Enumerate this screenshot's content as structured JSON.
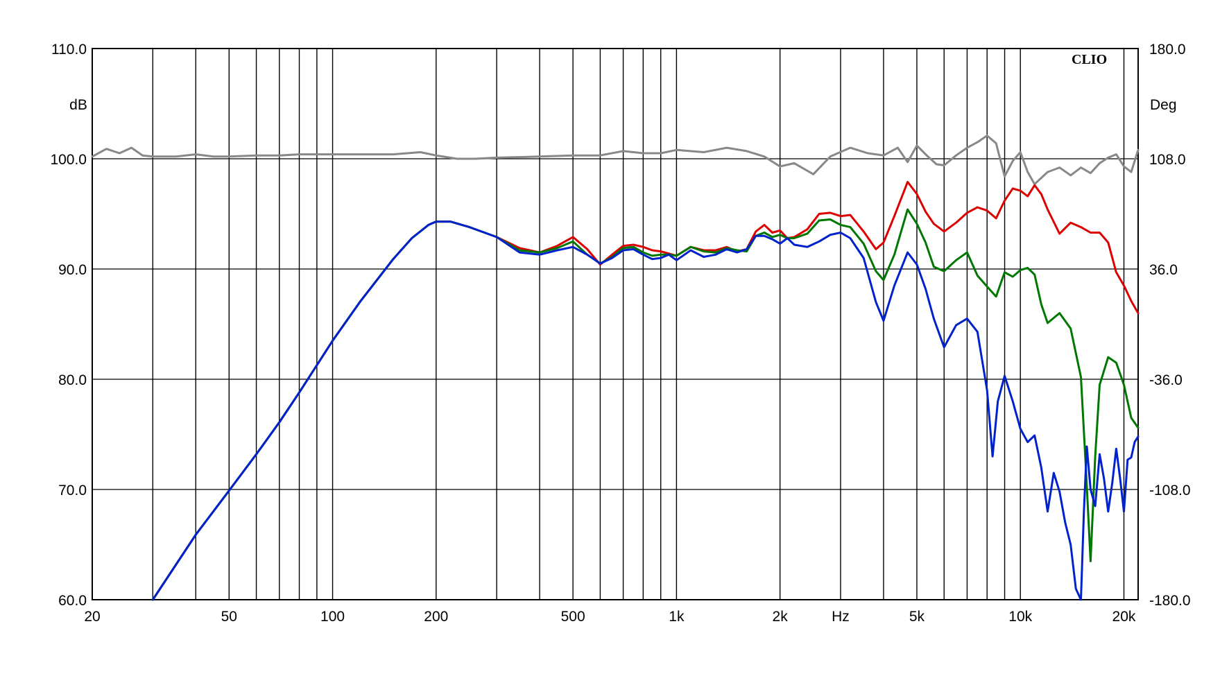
{
  "chart_data": {
    "type": "line",
    "brand": "CLIO",
    "x_unit_label": "Hz",
    "y_unit_label": "dB",
    "y2_unit_label": "Deg",
    "x_scale": "log",
    "xlim": [
      20,
      22000
    ],
    "ylim": [
      60,
      110
    ],
    "y2lim": [
      -180,
      180
    ],
    "grid": true,
    "x_gridlines": [
      30,
      40,
      50,
      60,
      70,
      80,
      90,
      100,
      200,
      300,
      400,
      500,
      600,
      700,
      800,
      900,
      1000,
      2000,
      3000,
      4000,
      5000,
      6000,
      7000,
      8000,
      9000,
      10000,
      20000
    ],
    "x_tick_labels": [
      {
        "value": 20,
        "label": "20"
      },
      {
        "value": 50,
        "label": "50"
      },
      {
        "value": 100,
        "label": "100"
      },
      {
        "value": 200,
        "label": "200"
      },
      {
        "value": 500,
        "label": "500"
      },
      {
        "value": 1000,
        "label": "1k"
      },
      {
        "value": 2000,
        "label": "2k"
      },
      {
        "value": 3000,
        "label": "Hz"
      },
      {
        "value": 5000,
        "label": "5k"
      },
      {
        "value": 10000,
        "label": "10k"
      },
      {
        "value": 20000,
        "label": "20k"
      }
    ],
    "y_ticks": [
      {
        "value": 110,
        "label": "110.0"
      },
      {
        "value": 100,
        "label": "100.0"
      },
      {
        "value": 90,
        "label": "90.0"
      },
      {
        "value": 80,
        "label": "80.0"
      },
      {
        "value": 70,
        "label": "70.0"
      },
      {
        "value": 60,
        "label": "60.0"
      }
    ],
    "y2_ticks": [
      {
        "value": 180,
        "label": "180.0"
      },
      {
        "value": 108,
        "label": "108.0"
      },
      {
        "value": 36,
        "label": "36.0"
      },
      {
        "value": -36,
        "label": "-36.0"
      },
      {
        "value": -108,
        "label": "-108.0"
      },
      {
        "value": -180,
        "label": "-180.0"
      }
    ],
    "series": [
      {
        "color": "#888888",
        "axis": "y",
        "x": [
          20,
          22,
          24,
          26,
          28,
          30,
          35,
          40,
          45,
          50,
          60,
          70,
          80,
          90,
          100,
          120,
          150,
          180,
          200,
          230,
          260,
          300,
          400,
          500,
          600,
          700,
          800,
          900,
          1000,
          1200,
          1400,
          1600,
          1800,
          2000,
          2200,
          2500,
          2800,
          3200,
          3600,
          4000,
          4400,
          4700,
          5000,
          5300,
          5700,
          6000,
          6500,
          7000,
          7500,
          8000,
          8500,
          9000,
          9500,
          10000,
          10500,
          11000,
          12000,
          13000,
          14000,
          15000,
          16000,
          17000,
          18000,
          19000,
          20000,
          21000,
          22000
        ],
        "values": [
          100.2,
          100.9,
          100.5,
          101.0,
          100.3,
          100.2,
          100.2,
          100.4,
          100.2,
          100.2,
          100.3,
          100.3,
          100.4,
          100.4,
          100.4,
          100.4,
          100.4,
          100.6,
          100.3,
          100.0,
          100.0,
          100.1,
          100.2,
          100.3,
          100.3,
          100.7,
          100.5,
          100.5,
          100.8,
          100.6,
          101.0,
          100.7,
          100.2,
          99.3,
          99.6,
          98.6,
          100.2,
          101.0,
          100.5,
          100.3,
          101.0,
          99.7,
          101.2,
          100.4,
          99.5,
          99.4,
          100.3,
          101.0,
          101.5,
          102.1,
          101.4,
          98.4,
          99.8,
          100.6,
          98.8,
          97.7,
          98.8,
          99.2,
          98.5,
          99.2,
          98.7,
          99.6,
          100.1,
          100.4,
          99.3,
          98.8,
          100.8
        ]
      },
      {
        "color": "#dd0000",
        "axis": "y",
        "x": [
          20,
          30,
          40,
          50,
          60,
          70,
          80,
          100,
          120,
          150,
          170,
          190,
          200,
          220,
          250,
          300,
          350,
          400,
          450,
          500,
          550,
          600,
          650,
          700,
          750,
          800,
          850,
          900,
          950,
          1000,
          1100,
          1200,
          1300,
          1400,
          1500,
          1600,
          1700,
          1800,
          1900,
          2000,
          2100,
          2200,
          2400,
          2600,
          2800,
          3000,
          3200,
          3500,
          3800,
          4000,
          4300,
          4700,
          5000,
          5300,
          5600,
          6000,
          6500,
          7000,
          7500,
          8000,
          8500,
          9000,
          9500,
          10000,
          10500,
          11000,
          11500,
          12000,
          13000,
          14000,
          15000,
          16000,
          17000,
          18000,
          19000,
          20000,
          21000,
          22000
        ],
        "values": [
          null,
          60.0,
          65.9,
          69.9,
          73.2,
          76.1,
          78.8,
          83.5,
          87.0,
          90.9,
          92.8,
          94.0,
          94.3,
          94.3,
          93.8,
          92.9,
          91.9,
          91.5,
          92.1,
          92.9,
          91.8,
          90.4,
          91.3,
          92.1,
          92.2,
          92.0,
          91.7,
          91.6,
          91.4,
          91.2,
          92.0,
          91.7,
          91.7,
          92.0,
          91.6,
          91.8,
          93.4,
          94.0,
          93.3,
          93.5,
          92.8,
          92.9,
          93.6,
          95.0,
          95.1,
          94.8,
          94.9,
          93.4,
          91.8,
          92.4,
          94.8,
          97.9,
          96.8,
          95.2,
          94.1,
          93.4,
          94.2,
          95.1,
          95.6,
          95.3,
          94.6,
          96.2,
          97.3,
          97.1,
          96.6,
          97.6,
          96.8,
          95.4,
          93.2,
          94.2,
          93.8,
          93.3,
          93.3,
          92.4,
          89.7,
          88.5,
          87.1,
          86.0
        ]
      },
      {
        "color": "#007700",
        "axis": "y",
        "x": [
          20,
          30,
          40,
          50,
          60,
          70,
          80,
          100,
          120,
          150,
          170,
          190,
          200,
          220,
          250,
          300,
          350,
          400,
          450,
          500,
          550,
          600,
          650,
          700,
          750,
          800,
          850,
          900,
          950,
          1000,
          1100,
          1200,
          1300,
          1400,
          1500,
          1600,
          1700,
          1800,
          1900,
          2000,
          2100,
          2200,
          2400,
          2600,
          2800,
          3000,
          3200,
          3500,
          3800,
          4000,
          4300,
          4700,
          5000,
          5300,
          5600,
          6000,
          6500,
          7000,
          7500,
          8000,
          8500,
          9000,
          9500,
          10000,
          10500,
          11000,
          11500,
          12000,
          13000,
          14000,
          15000,
          15500,
          16000,
          16500,
          17000,
          18000,
          19000,
          20000,
          21000,
          22000
        ],
        "values": [
          null,
          60.0,
          65.9,
          69.9,
          73.2,
          76.1,
          78.8,
          83.5,
          87.0,
          90.9,
          92.8,
          94.0,
          94.3,
          94.3,
          93.8,
          92.9,
          91.7,
          91.5,
          91.9,
          92.5,
          91.3,
          90.5,
          91.1,
          91.9,
          92.0,
          91.5,
          91.2,
          91.3,
          91.3,
          91.2,
          92.0,
          91.6,
          91.5,
          91.9,
          91.7,
          91.6,
          93.0,
          93.3,
          92.9,
          93.1,
          92.8,
          92.8,
          93.2,
          94.4,
          94.5,
          94.0,
          93.8,
          92.3,
          89.8,
          89.0,
          91.3,
          95.4,
          94.1,
          92.4,
          90.2,
          89.8,
          90.8,
          91.5,
          89.4,
          88.4,
          87.5,
          89.7,
          89.3,
          89.9,
          90.1,
          89.5,
          86.8,
          85.1,
          86.0,
          84.6,
          80.2,
          72.0,
          63.5,
          73.0,
          79.5,
          82.0,
          81.5,
          79.5,
          76.5,
          75.6
        ]
      },
      {
        "color": "#0022cc",
        "axis": "y",
        "x": [
          20,
          30,
          40,
          50,
          60,
          70,
          80,
          100,
          120,
          150,
          170,
          190,
          200,
          220,
          250,
          300,
          350,
          400,
          450,
          500,
          550,
          600,
          650,
          700,
          750,
          800,
          850,
          900,
          950,
          1000,
          1100,
          1200,
          1300,
          1400,
          1500,
          1600,
          1700,
          1800,
          1900,
          2000,
          2100,
          2200,
          2400,
          2600,
          2800,
          3000,
          3200,
          3500,
          3800,
          4000,
          4300,
          4700,
          5000,
          5300,
          5600,
          6000,
          6500,
          7000,
          7500,
          8000,
          8300,
          8600,
          9000,
          9500,
          10000,
          10500,
          11000,
          11500,
          12000,
          12500,
          13000,
          13500,
          14000,
          14500,
          15000,
          15300,
          15600,
          16000,
          16500,
          17000,
          17500,
          18000,
          18500,
          19000,
          19500,
          20000,
          20500,
          21000,
          21500,
          22000
        ],
        "values": [
          null,
          60.0,
          65.9,
          69.9,
          73.2,
          76.1,
          78.8,
          83.5,
          87.0,
          90.9,
          92.8,
          94.0,
          94.3,
          94.3,
          93.8,
          92.9,
          91.5,
          91.3,
          91.7,
          92.0,
          91.3,
          90.5,
          91.0,
          91.7,
          91.8,
          91.3,
          90.9,
          91.0,
          91.3,
          90.8,
          91.7,
          91.1,
          91.3,
          91.8,
          91.5,
          91.8,
          93.0,
          93.0,
          92.7,
          92.3,
          92.8,
          92.2,
          92.0,
          92.5,
          93.1,
          93.3,
          92.8,
          91.0,
          87.0,
          85.3,
          88.5,
          91.5,
          90.4,
          88.2,
          85.5,
          82.9,
          84.9,
          85.5,
          84.3,
          79.0,
          73.0,
          78.0,
          80.3,
          78.0,
          75.5,
          74.3,
          74.9,
          72.0,
          68.0,
          71.5,
          69.8,
          67.0,
          65.0,
          61.0,
          60.0,
          68.0,
          73.9,
          70.0,
          68.5,
          73.2,
          71.0,
          68.0,
          70.6,
          73.7,
          71.0,
          68.0,
          72.7,
          72.9,
          74.3,
          74.8
        ]
      }
    ]
  }
}
